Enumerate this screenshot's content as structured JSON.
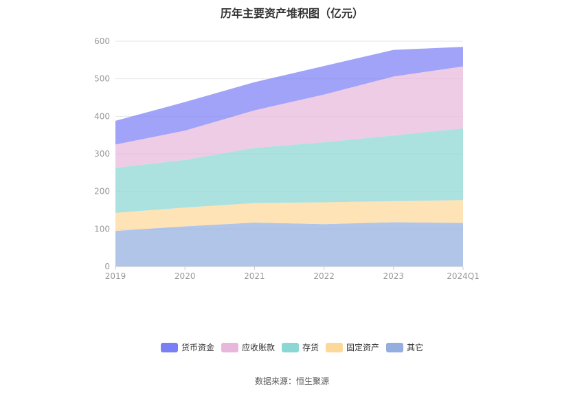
{
  "chart_data": {
    "type": "area",
    "title": "历年主要资产堆积图（亿元）",
    "categories": [
      "2019",
      "2020",
      "2021",
      "2022",
      "2023",
      "2024Q1"
    ],
    "ylim": [
      0,
      600
    ],
    "yticks": [
      0,
      100,
      200,
      300,
      400,
      500,
      600
    ],
    "stacked": true,
    "grid": true,
    "legend_position": "bottom",
    "series": [
      {
        "name": "其它",
        "color": "#93aedf",
        "values": [
          95,
          107,
          117,
          113,
          118,
          116
        ]
      },
      {
        "name": "固定资产",
        "color": "#fdd89b",
        "values": [
          48,
          50,
          52,
          58,
          56,
          61
        ]
      },
      {
        "name": "存货",
        "color": "#8ad7d4",
        "values": [
          120,
          127,
          147,
          160,
          175,
          191
        ]
      },
      {
        "name": "应收账款",
        "color": "#e7b8db",
        "values": [
          62,
          78,
          100,
          127,
          157,
          165
        ]
      },
      {
        "name": "货币资金",
        "color": "#7b7ff4",
        "values": [
          63,
          76,
          75,
          76,
          71,
          52
        ]
      }
    ]
  },
  "legend_order": [
    4,
    3,
    2,
    1,
    0
  ],
  "source": "数据来源：恒生聚源"
}
